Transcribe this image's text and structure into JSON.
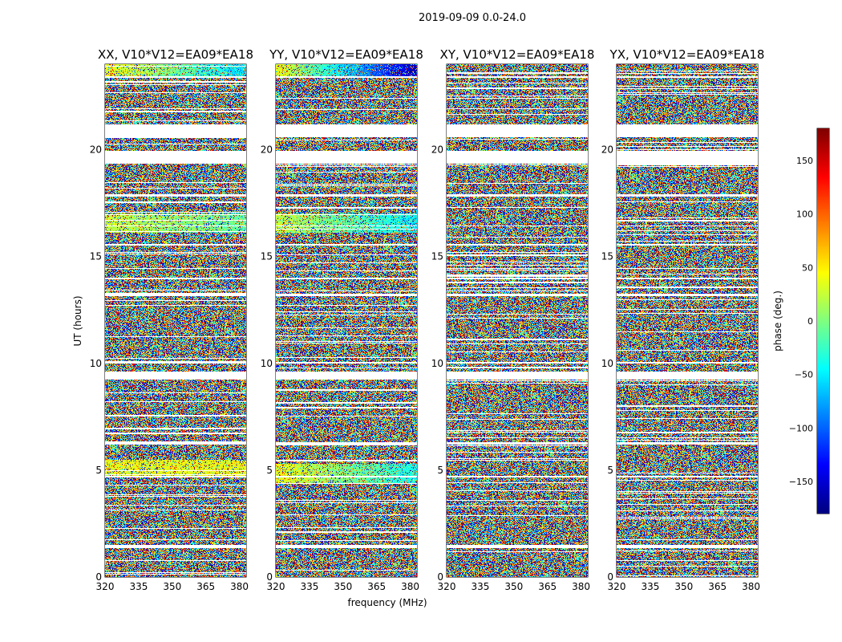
{
  "figure": {
    "suptitle": "2019-09-09 0.0-24.0",
    "shared_xlabel": "frequency (MHz)",
    "shared_ylabel": "UT (hours)"
  },
  "chart_data": {
    "type": "heatmap",
    "colormap": "jet",
    "x": {
      "label": "frequency (MHz)",
      "range": [
        320,
        383
      ],
      "ticks": [
        320,
        335,
        350,
        365,
        380
      ]
    },
    "y": {
      "label": "UT (hours)",
      "range": [
        0,
        24
      ],
      "ticks": [
        0,
        5,
        10,
        15,
        20
      ]
    },
    "color": {
      "label": "phase (deg.)",
      "range": [
        -180,
        180
      ],
      "ticks": [
        -150,
        -100,
        -50,
        0,
        50,
        100,
        150
      ]
    },
    "flagged_time_ranges_hours": [
      [
        1.35,
        1.5
      ],
      [
        4.65,
        4.75
      ],
      [
        6.2,
        6.3
      ],
      [
        9.25,
        9.6
      ],
      [
        10.0,
        10.05
      ],
      [
        13.15,
        13.25
      ],
      [
        13.95,
        14.0
      ],
      [
        15.5,
        15.6
      ],
      [
        16.4,
        16.45
      ],
      [
        17.8,
        17.9
      ],
      [
        19.35,
        19.95
      ],
      [
        20.6,
        21.2
      ],
      [
        23.35,
        23.45
      ]
    ],
    "panels": [
      {
        "title": "XX, V10*V12=EA09*EA18",
        "coherent_bands": [
          [
            0.6,
            0.6,
            24.0,
            24.0,
            45,
            -60
          ],
          [
            0.25,
            0.25,
            5.3,
            5.5,
            40,
            40
          ],
          [
            0.3,
            0.3,
            16.7,
            17.0,
            25,
            -10
          ]
        ]
      },
      {
        "title": "YY, V10*V12=EA09*EA18",
        "coherent_bands": [
          [
            0.6,
            0.6,
            24.0,
            24.0,
            40,
            -160,
            160
          ],
          [
            0.25,
            0.25,
            5.0,
            5.3,
            40,
            -40
          ],
          [
            0.3,
            0.3,
            16.7,
            17.0,
            25,
            -50
          ]
        ]
      },
      {
        "title": "XY, V10*V12=EA09*EA18",
        "coherent_bands": []
      },
      {
        "title": "YX, V10*V12=EA09*EA18",
        "coherent_bands": []
      }
    ]
  }
}
